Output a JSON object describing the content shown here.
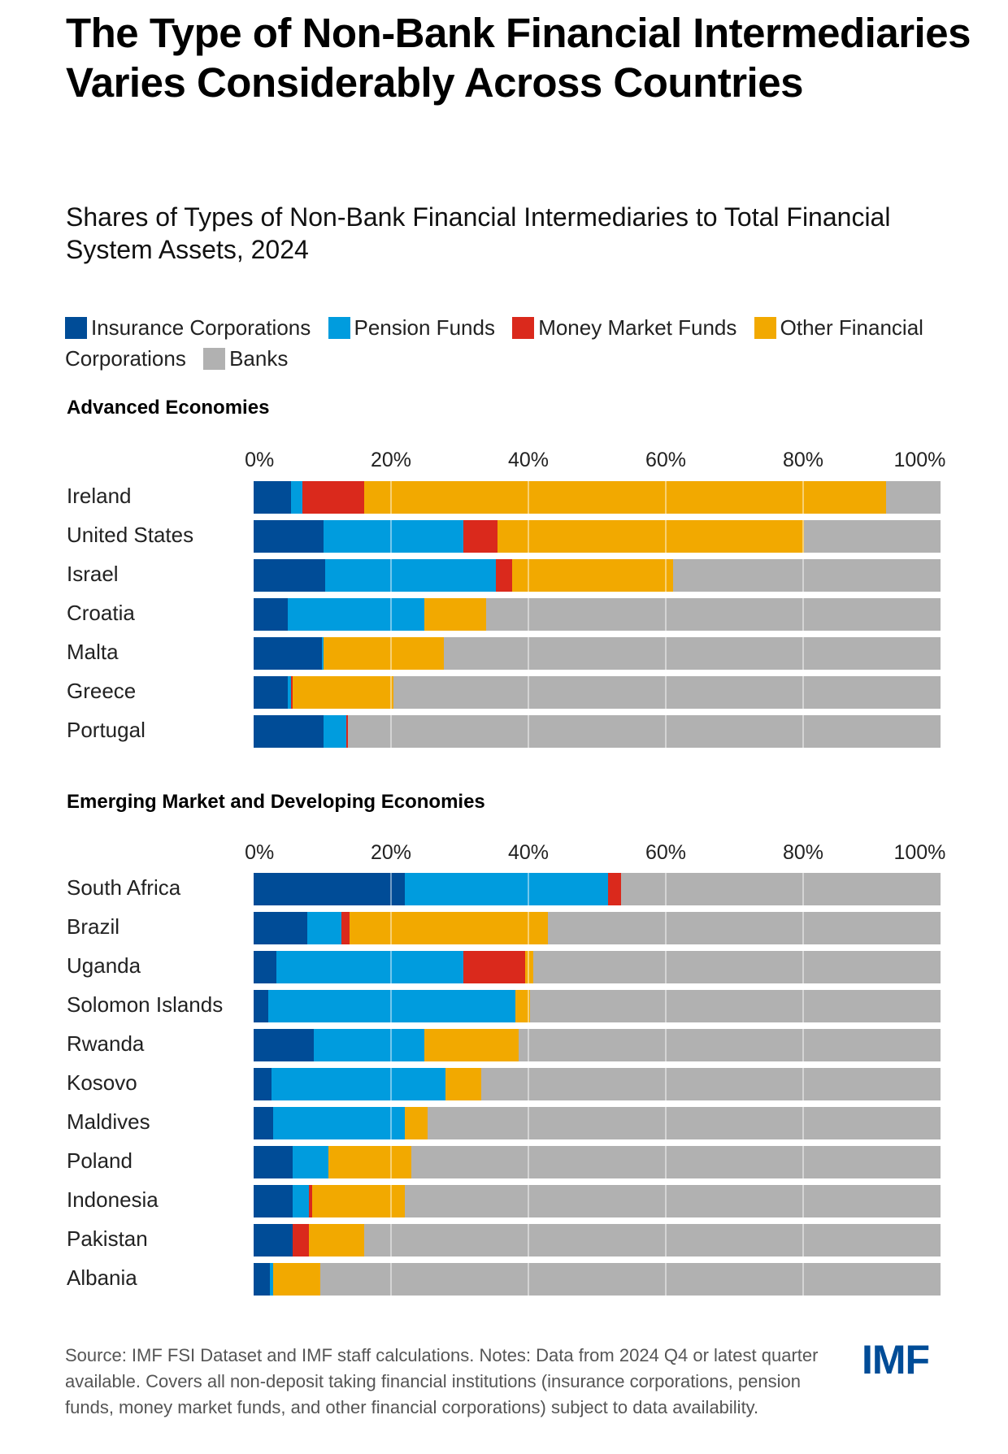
{
  "title": "The Type of Non-Bank Financial Intermediaries Varies Considerably Across Countries",
  "subtitle": "Shares of Types of Non-Bank Financial Intermediaries to Total Financial System Assets, 2024",
  "legend": [
    {
      "label": "Insurance Corporations",
      "color": "#004C97"
    },
    {
      "label": "Pension Funds",
      "color": "#009CDE"
    },
    {
      "label": "Money Market Funds",
      "color": "#DA291C"
    },
    {
      "label": "Other Financial Corporations",
      "color": "#F2A900"
    },
    {
      "label": "Banks",
      "color": "#B1B1B1"
    }
  ],
  "footer": "Source: IMF FSI Dataset and IMF staff calculations. Notes: Data from 2024 Q4 or latest quarter available. Covers all non-deposit taking financial institutions (insurance corporations, pension funds, money market funds, and other financial corporations) subject to data availability.",
  "logo": "IMF",
  "chart_data": [
    {
      "type": "bar",
      "orientation": "horizontal",
      "stacked": true,
      "title": "Advanced Economies",
      "xlabel": "",
      "ylabel": "",
      "xlim": [
        0,
        100
      ],
      "x_ticks": [
        "0%",
        "20%",
        "40%",
        "60%",
        "80%",
        "100%"
      ],
      "grid": true,
      "legend_position": "top",
      "categories": [
        "Ireland",
        "United States",
        "Israel",
        "Croatia",
        "Malta",
        "Greece",
        "Portugal"
      ],
      "series": [
        {
          "name": "Insurance Corporations",
          "color": "#004C97",
          "values": [
            5.4,
            10.2,
            10.4,
            5.0,
            9.9,
            5.0,
            10.2
          ]
        },
        {
          "name": "Pension Funds",
          "color": "#009CDE",
          "values": [
            1.7,
            20.3,
            24.9,
            19.9,
            0.3,
            0.4,
            3.3
          ]
        },
        {
          "name": "Money Market Funds",
          "color": "#DA291C",
          "values": [
            9.0,
            5.0,
            2.3,
            0.0,
            0.0,
            0.3,
            0.2
          ]
        },
        {
          "name": "Other Financial Corporations",
          "color": "#F2A900",
          "values": [
            76.0,
            44.6,
            23.5,
            8.9,
            17.5,
            14.7,
            0.0
          ]
        },
        {
          "name": "Banks",
          "color": "#B1B1B1",
          "values": [
            7.9,
            19.9,
            38.9,
            66.2,
            72.3,
            79.6,
            86.3
          ]
        }
      ]
    },
    {
      "type": "bar",
      "orientation": "horizontal",
      "stacked": true,
      "title": "Emerging Market and Developing Economies",
      "xlabel": "",
      "ylabel": "",
      "xlim": [
        0,
        100
      ],
      "x_ticks": [
        "0%",
        "20%",
        "40%",
        "60%",
        "80%",
        "100%"
      ],
      "grid": true,
      "legend_position": "top",
      "categories": [
        "South Africa",
        "Brazil",
        "Uganda",
        "Solomon Islands",
        "Rwanda",
        "Kosovo",
        "Maldives",
        "Poland",
        "Indonesia",
        "Pakistan",
        "Albania"
      ],
      "series": [
        {
          "name": "Insurance Corporations",
          "color": "#004C97",
          "values": [
            22.0,
            7.8,
            3.3,
            2.1,
            8.8,
            2.6,
            2.8,
            5.7,
            5.7,
            5.7,
            2.4
          ]
        },
        {
          "name": "Pension Funds",
          "color": "#009CDE",
          "values": [
            29.6,
            5.0,
            27.2,
            36.0,
            16.1,
            25.3,
            19.2,
            5.2,
            2.3,
            0.0,
            0.4
          ]
        },
        {
          "name": "Money Market Funds",
          "color": "#DA291C",
          "values": [
            1.9,
            1.2,
            9.0,
            0.0,
            0.0,
            0.0,
            0.0,
            0.0,
            0.5,
            2.3,
            0.0
          ]
        },
        {
          "name": "Other Financial Corporations",
          "color": "#F2A900",
          "values": [
            0.0,
            28.8,
            1.2,
            2.1,
            13.7,
            5.2,
            3.3,
            12.1,
            13.5,
            8.1,
            6.9
          ]
        },
        {
          "name": "Banks",
          "color": "#B1B1B1",
          "values": [
            46.5,
            57.2,
            59.3,
            59.8,
            61.4,
            66.9,
            74.7,
            77.0,
            78.0,
            83.9,
            90.3
          ]
        }
      ]
    }
  ]
}
